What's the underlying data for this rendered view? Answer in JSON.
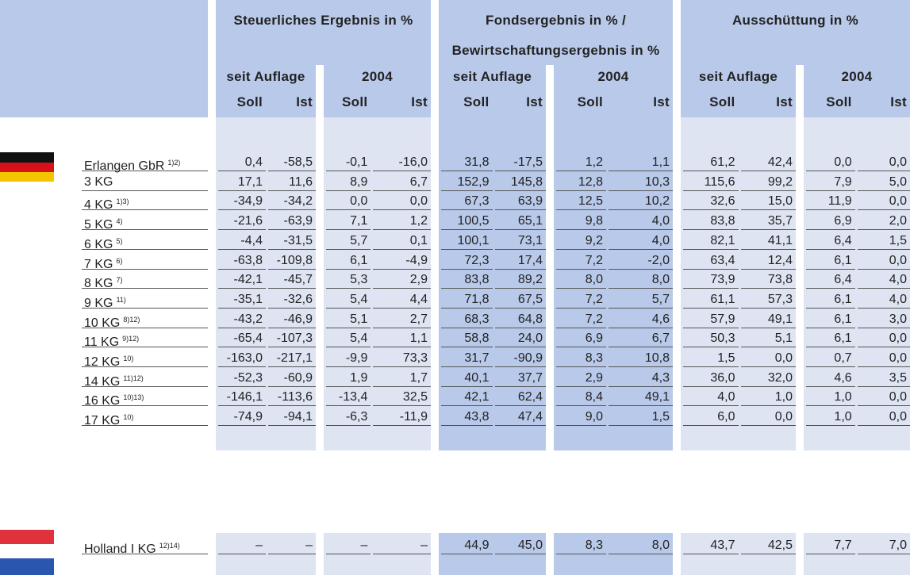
{
  "header": {
    "groups": [
      {
        "title": "Steuerliches Ergebnis in %"
      },
      {
        "title": "Fondsergebnis in % /",
        "subtitle": "Bewirtschaftungsergebnis in %"
      },
      {
        "title": "Ausschüttung in %"
      }
    ],
    "periods": [
      "seit Auflage",
      "2004"
    ],
    "subcols": [
      "Soll",
      "Ist"
    ]
  },
  "table": {
    "rows": [
      {
        "name": "Erlangen GbR",
        "note": "1)2)",
        "values": [
          "0,4",
          "-58,5",
          "-0,1",
          "-16,0",
          "31,8",
          "-17,5",
          "1,2",
          "1,1",
          "61,2",
          "42,4",
          "0,0",
          "0,0"
        ]
      },
      {
        "name": "3 KG",
        "values": [
          "17,1",
          "11,6",
          "8,9",
          "6,7",
          "152,9",
          "145,8",
          "12,8",
          "10,3",
          "115,6",
          "99,2",
          "7,9",
          "5,0"
        ]
      },
      {
        "name": "4 KG",
        "note": "1)3)",
        "values": [
          "-34,9",
          "-34,2",
          "0,0",
          "0,0",
          "67,3",
          "63,9",
          "12,5",
          "10,2",
          "32,6",
          "15,0",
          "11,9",
          "0,0"
        ]
      },
      {
        "name": "5 KG",
        "note": "4)",
        "values": [
          "-21,6",
          "-63,9",
          "7,1",
          "1,2",
          "100,5",
          "65,1",
          "9,8",
          "4,0",
          "83,8",
          "35,7",
          "6,9",
          "2,0"
        ]
      },
      {
        "name": "6 KG",
        "note": "5)",
        "values": [
          "-4,4",
          "-31,5",
          "5,7",
          "0,1",
          "100,1",
          "73,1",
          "9,2",
          "4,0",
          "82,1",
          "41,1",
          "6,4",
          "1,5"
        ]
      },
      {
        "name": "7 KG",
        "note": "6)",
        "values": [
          "-63,8",
          "-109,8",
          "6,1",
          "-4,9",
          "72,3",
          "17,4",
          "7,2",
          "-2,0",
          "63,4",
          "12,4",
          "6,1",
          "0,0"
        ]
      },
      {
        "name": "8 KG",
        "note": "7)",
        "values": [
          "-42,1",
          "-45,7",
          "5,3",
          "2,9",
          "83,8",
          "89,2",
          "8,0",
          "8,0",
          "73,9",
          "73,8",
          "6,4",
          "4,0"
        ]
      },
      {
        "name": "9 KG",
        "note": "11)",
        "values": [
          "-35,1",
          "-32,6",
          "5,4",
          "4,4",
          "71,8",
          "67,5",
          "7,2",
          "5,7",
          "61,1",
          "57,3",
          "6,1",
          "4,0"
        ]
      },
      {
        "name": "10 KG",
        "note": "8)12)",
        "values": [
          "-43,2",
          "-46,9",
          "5,1",
          "2,7",
          "68,3",
          "64,8",
          "7,2",
          "4,6",
          "57,9",
          "49,1",
          "6,1",
          "3,0"
        ]
      },
      {
        "name": "11 KG",
        "note": "9)12)",
        "values": [
          "-65,4",
          "-107,3",
          "5,4",
          "1,1",
          "58,8",
          "24,0",
          "6,9",
          "6,7",
          "50,3",
          "5,1",
          "6,1",
          "0,0"
        ]
      },
      {
        "name": "12 KG",
        "note": "10)",
        "values": [
          "-163,0",
          "-217,1",
          "-9,9",
          "73,3",
          "31,7",
          "-90,9",
          "8,3",
          "10,8",
          "1,5",
          "0,0",
          "0,7",
          "0,0"
        ]
      },
      {
        "name": "14 KG",
        "note": "11)12)",
        "values": [
          "-52,3",
          "-60,9",
          "1,9",
          "1,7",
          "40,1",
          "37,7",
          "2,9",
          "4,3",
          "36,0",
          "32,0",
          "4,6",
          "3,5"
        ]
      },
      {
        "name": "16 KG",
        "note": "10)13)",
        "values": [
          "-146,1",
          "-113,6",
          "-13,4",
          "32,5",
          "42,1",
          "62,4",
          "8,4",
          "49,1",
          "4,0",
          "1,0",
          "1,0",
          "0,0"
        ]
      },
      {
        "name": "17 KG",
        "note": "10)",
        "values": [
          "-74,9",
          "-94,1",
          "-6,3",
          "-11,9",
          "43,8",
          "47,4",
          "9,0",
          "1,5",
          "6,0",
          "0,0",
          "1,0",
          "0,0"
        ]
      },
      {
        "name": "Holland I KG",
        "note": "12)14)",
        "values": [
          "–",
          "–",
          "–",
          "–",
          "44,9",
          "45,0",
          "8,3",
          "8,0",
          "43,7",
          "42,5",
          "7,7",
          "7,0"
        ]
      }
    ]
  }
}
